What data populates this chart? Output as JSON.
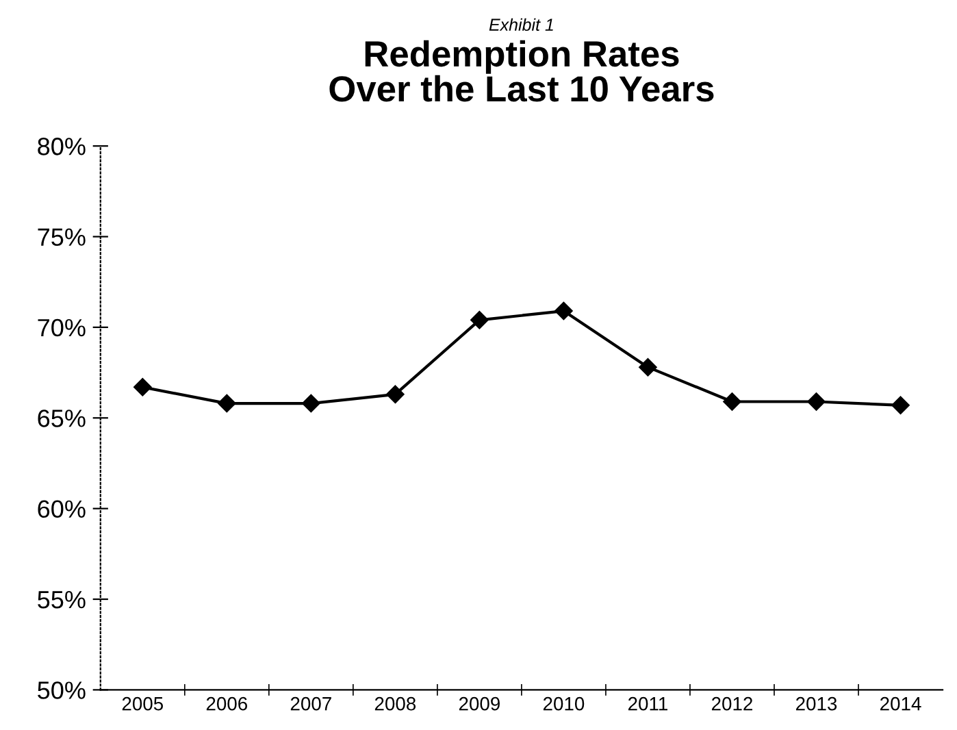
{
  "chart_data": {
    "type": "line",
    "subtitle": "Exhibit 1",
    "title": "Redemption Rates\nOver the Last 10 Years",
    "categories": [
      "2005",
      "2006",
      "2007",
      "2008",
      "2009",
      "2010",
      "2011",
      "2012",
      "2013",
      "2014"
    ],
    "series": [
      {
        "color": "#000000",
        "values": [
          66.7,
          65.8,
          65.8,
          66.3,
          70.4,
          70.9,
          67.8,
          65.9,
          65.9,
          65.7
        ]
      }
    ],
    "ylim": [
      50,
      80
    ],
    "yticks": [
      {
        "value": 50,
        "label": "50%"
      },
      {
        "value": 55,
        "label": "55%"
      },
      {
        "value": 60,
        "label": "60%"
      },
      {
        "value": 65,
        "label": "65%"
      },
      {
        "value": 70,
        "label": "70%"
      },
      {
        "value": 75,
        "label": "75%"
      },
      {
        "value": 80,
        "label": "80%"
      }
    ],
    "marker": "diamond",
    "line_style": "solid",
    "grid": false,
    "legend": false
  }
}
